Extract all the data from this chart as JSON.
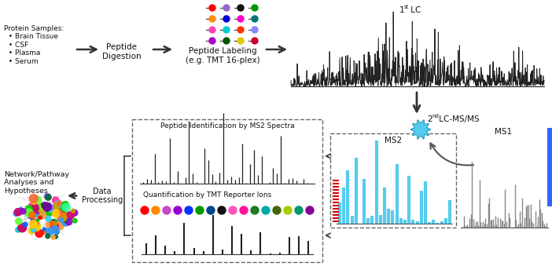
{
  "bg_color": "#ffffff",
  "protein_samples_text": "Protein Samples:\n  • Brain Tissue\n  • CSF\n  • Plasma\n  • Serum",
  "peptide_digestion_text": "Peptide\nDigestion",
  "peptide_labeling_text": "Peptide Labeling\n(e.g. TMT 16-plex)",
  "lc1_text": "1st LC",
  "lc2_text": "2nd LC-MS/MS",
  "ms2_text": "MS2",
  "ms1_text": "MS1",
  "ms2_id_text": "Peptide Identification by MS2 Spectra",
  "quant_text": "Quantification by TMT Reporter Ions",
  "data_proc_text": "Data\nProcessing",
  "network_text": "Network/Pathway\nAnalyses and\nHypotheses",
  "tmt_colors_row1": [
    "#ff0000",
    "#9966cc",
    "#111111",
    "#009900"
  ],
  "tmt_colors_row2": [
    "#ff8c00",
    "#0000dd",
    "#ff00cc",
    "#007777"
  ],
  "tmt_colors_row3": [
    "#ff44bb",
    "#00cccc",
    "#ff3300",
    "#8888ff"
  ],
  "tmt_colors_row4": [
    "#aa00cc",
    "#005500",
    "#ddcc00",
    "#cc0033"
  ],
  "quant_dot_colors": [
    "#ff0000",
    "#ff8800",
    "#cc44cc",
    "#9900cc",
    "#0033ff",
    "#009900",
    "#004488",
    "#111111",
    "#ff55bb",
    "#ff1199",
    "#227722",
    "#00aaaa",
    "#446600",
    "#aacc00",
    "#009966",
    "#880099"
  ],
  "brain_colors": [
    "#ff0000",
    "#ff6600",
    "#ffcc00",
    "#00cc00",
    "#0066ff",
    "#9900cc",
    "#ff00ff",
    "#00cccc",
    "#ff3399",
    "#66ff33",
    "#ff9933",
    "#3399ff",
    "#cc0066",
    "#33ff99",
    "#9966ff",
    "#ff6633",
    "#33ccff",
    "#cc9900",
    "#006633",
    "#660099"
  ]
}
